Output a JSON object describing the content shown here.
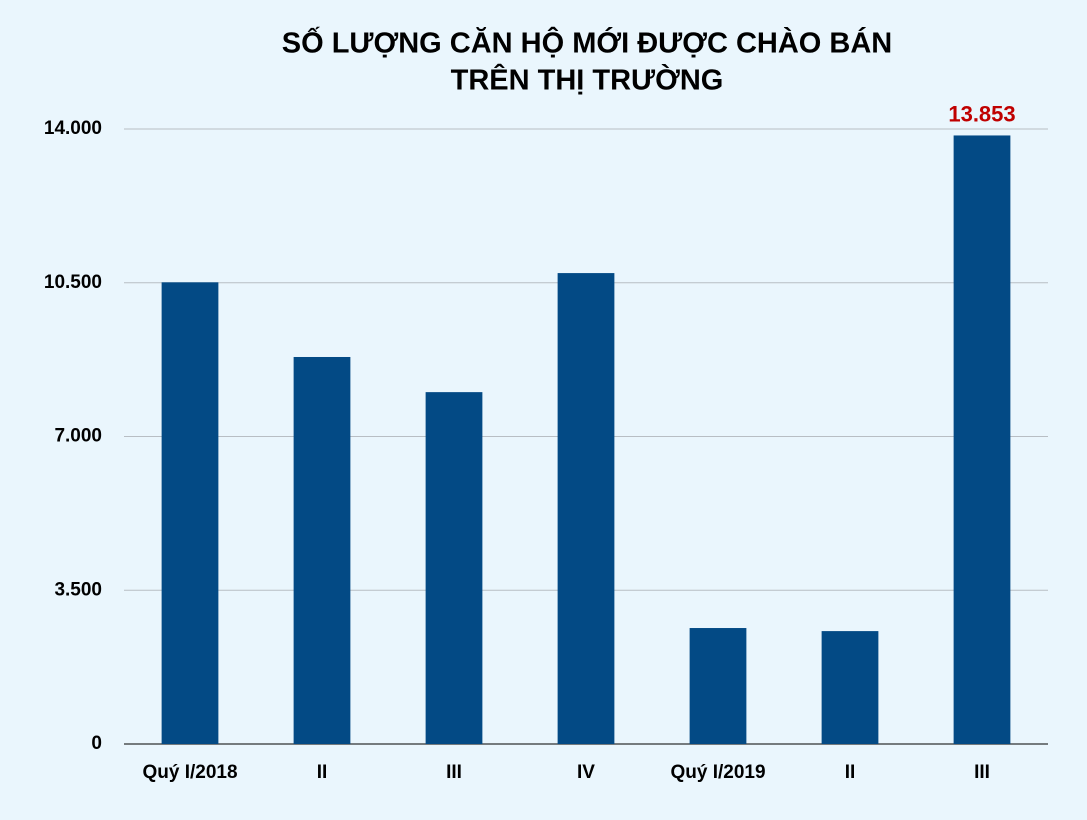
{
  "chart_data": {
    "type": "bar",
    "title": [
      "SỐ LƯỢNG CĂN HỘ MỚI ĐƯỢC CHÀO BÁN",
      "TRÊN THỊ TRƯỜNG"
    ],
    "categories": [
      "Quý I/2018",
      "II",
      "III",
      "IV",
      "Quý I/2019",
      "II",
      "III"
    ],
    "values": [
      10510,
      8810,
      8010,
      10720,
      2640,
      2570,
      13853
    ],
    "value_labels": [
      null,
      null,
      null,
      null,
      null,
      null,
      "13.853"
    ],
    "color": "#034a85",
    "value_label_color": "#c00000",
    "ylim": [
      0,
      14000
    ],
    "yticks": [
      {
        "value": 0,
        "label": "0"
      },
      {
        "value": 3500,
        "label": "3.500"
      },
      {
        "value": 7000,
        "label": "7.000"
      },
      {
        "value": 10500,
        "label": "10.500"
      },
      {
        "value": 14000,
        "label": "14.000"
      }
    ],
    "grid": true
  }
}
